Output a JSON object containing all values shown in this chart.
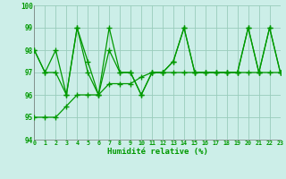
{
  "xlabel": "Humidité relative (%)",
  "xlim": [
    0,
    23
  ],
  "ylim": [
    94,
    100
  ],
  "yticks": [
    94,
    95,
    96,
    97,
    98,
    99,
    100
  ],
  "xticks": [
    0,
    1,
    2,
    3,
    4,
    5,
    6,
    7,
    8,
    9,
    10,
    11,
    12,
    13,
    14,
    15,
    16,
    17,
    18,
    19,
    20,
    21,
    22,
    23
  ],
  "background_color": "#cceee8",
  "grid_color": "#99ccbb",
  "line_color": "#009900",
  "line1": [
    98,
    97,
    98,
    96,
    99,
    97,
    96,
    99,
    97,
    97,
    96,
    97,
    97,
    97.5,
    99,
    97,
    97,
    97,
    97,
    97,
    99,
    97,
    99,
    97
  ],
  "line2": [
    98,
    97,
    97,
    96,
    99,
    97.5,
    96,
    98,
    97,
    97,
    96,
    97,
    97,
    97.5,
    99,
    97,
    97,
    97,
    97,
    97,
    99,
    97,
    99,
    97
  ],
  "line3": [
    95,
    95,
    95,
    95.5,
    96,
    96,
    96,
    96.5,
    96.5,
    96.5,
    96.8,
    97,
    97,
    97,
    97,
    97,
    97,
    97,
    97,
    97,
    97,
    97,
    97,
    97
  ]
}
